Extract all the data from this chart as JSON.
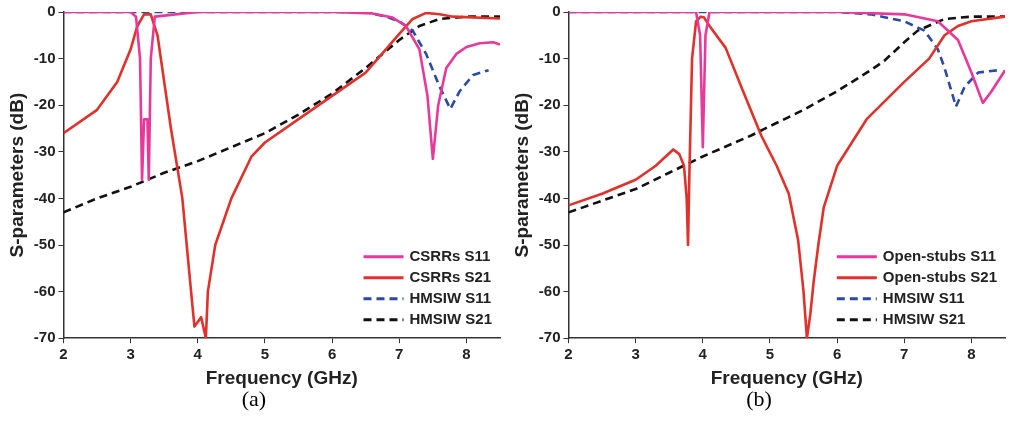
{
  "chart_data": [
    {
      "type": "line",
      "xlabel": "Frequency (GHz)",
      "ylabel": "S-parameters (dB)",
      "annotations": [
        "(a)"
      ],
      "xlim": [
        2,
        8.5
      ],
      "ylim": [
        -70,
        0
      ],
      "xticks": [
        2,
        3,
        4,
        5,
        6,
        7,
        8
      ],
      "yticks": [
        -70,
        -60,
        -50,
        -40,
        -30,
        -20,
        -10,
        0
      ],
      "grid": false,
      "legend": "bottom right",
      "marker": "none",
      "series": [
        {
          "name": "CSRRs S11",
          "color": "#e8399b",
          "line_style": "solid",
          "x": [
            2,
            3,
            3.08,
            3.14,
            3.17,
            3.2,
            3.22,
            3.25,
            3.27,
            3.3,
            3.36,
            4,
            5,
            6,
            6.6,
            6.9,
            7.1,
            7.3,
            7.42,
            7.5,
            7.58,
            7.7,
            7.85,
            8,
            8.2,
            8.4,
            8.5
          ],
          "values": [
            0,
            0,
            -1,
            -10,
            -36,
            -23,
            -23,
            -23,
            -36,
            -10,
            -1,
            0,
            0,
            0,
            -0.3,
            -1.2,
            -3,
            -8,
            -18,
            -31.5,
            -20,
            -12,
            -9,
            -7.5,
            -6.7,
            -6.5,
            -7
          ]
        },
        {
          "name": "CSRRs S21",
          "color": "#e0312a",
          "line_style": "solid",
          "x": [
            2,
            2.5,
            2.8,
            3,
            3.1,
            3.2,
            3.3,
            3.4,
            3.6,
            3.77,
            3.9,
            3.95,
            4.05,
            4.12,
            4.15,
            4.26,
            4.5,
            4.8,
            5,
            5.5,
            6,
            6.5,
            7,
            7.2,
            7.4,
            7.6,
            7.8,
            8.5
          ],
          "values": [
            -26,
            -21,
            -15,
            -8,
            -3,
            -0.5,
            -0.5,
            -5,
            -25,
            -40,
            -60,
            -67.5,
            -65.5,
            -70,
            -60,
            -50,
            -40,
            -31,
            -28,
            -23,
            -18,
            -13,
            -4.7,
            -1.5,
            -0.2,
            -0.5,
            -1,
            -1.4
          ]
        },
        {
          "name": "HMSIW S11",
          "color": "#2b4aa8",
          "line_style": "dashed",
          "x": [
            2,
            6.5,
            6.8,
            7,
            7.2,
            7.4,
            7.6,
            7.76,
            7.9,
            8.1,
            8.33
          ],
          "values": [
            0,
            0,
            -1,
            -2,
            -4,
            -9,
            -16,
            -20.8,
            -17,
            -13.5,
            -12.5
          ]
        },
        {
          "name": "HMSIW S21",
          "color": "#111111",
          "line_style": "dashed",
          "x": [
            2,
            2.5,
            3,
            3.25,
            3.5,
            4,
            4.5,
            5,
            5.5,
            6,
            6.5,
            7,
            7.3,
            7.6,
            8,
            8.5
          ],
          "values": [
            -43,
            -40,
            -37.5,
            -36,
            -34.5,
            -32,
            -29,
            -26,
            -22,
            -17.5,
            -12,
            -6,
            -3,
            -1.5,
            -1,
            -1
          ]
        }
      ]
    },
    {
      "type": "line",
      "xlabel": "Frequency (GHz)",
      "ylabel": "S-parameters (dB)",
      "annotations": [
        "(b)"
      ],
      "xlim": [
        2,
        8.5
      ],
      "ylim": [
        -70,
        0
      ],
      "xticks": [
        2,
        3,
        4,
        5,
        6,
        7,
        8
      ],
      "yticks": [
        -70,
        -60,
        -50,
        -40,
        -30,
        -20,
        -10,
        0
      ],
      "grid": false,
      "legend": "bottom right",
      "marker": "none",
      "series": [
        {
          "name": "Open-stubs S11",
          "color": "#e8399b",
          "line_style": "solid",
          "x": [
            2,
            3.9,
            3.96,
            4,
            4.04,
            4.1,
            5,
            6,
            7,
            7.5,
            7.8,
            8,
            8.17,
            8.3,
            8.5
          ],
          "values": [
            0,
            0,
            -5,
            -29,
            -5,
            0,
            0,
            0,
            -0.5,
            -2,
            -6,
            -13,
            -19.5,
            -17,
            -12.5
          ]
        },
        {
          "name": "Open-stubs S21",
          "color": "#e0312a",
          "line_style": "solid",
          "x": [
            2,
            2.5,
            3,
            3.3,
            3.56,
            3.65,
            3.72,
            3.76,
            3.78,
            3.8,
            3.84,
            3.9,
            3.97,
            4.02,
            4.1,
            4.34,
            4.6,
            4.87,
            5.1,
            5.28,
            5.42,
            5.5,
            5.55,
            5.6,
            5.65,
            5.72,
            5.8,
            6,
            6.44,
            7,
            7.37,
            7.6,
            7.8,
            8,
            8.5
          ],
          "values": [
            -41.5,
            -39,
            -36,
            -33,
            -29.5,
            -30.5,
            -33,
            -40,
            -50,
            -35,
            -10,
            -2,
            -1,
            -1.2,
            -3,
            -7.7,
            -17,
            -26.5,
            -33,
            -39,
            -49,
            -60,
            -70,
            -65,
            -58,
            -50,
            -42,
            -33,
            -23,
            -15,
            -10,
            -5,
            -3,
            -2,
            -1
          ]
        },
        {
          "name": "HMSIW S11",
          "color": "#2b4aa8",
          "line_style": "dashed",
          "x": [
            2,
            6,
            6.5,
            7,
            7.3,
            7.5,
            7.6,
            7.77,
            7.9,
            8.1,
            8.4
          ],
          "values": [
            0,
            0,
            -0.5,
            -2,
            -4,
            -8,
            -12,
            -20.3,
            -16,
            -13,
            -12.5
          ]
        },
        {
          "name": "HMSIW S21",
          "color": "#111111",
          "line_style": "dashed",
          "x": [
            2,
            3,
            3.5,
            4,
            4.72,
            5,
            5.5,
            6,
            6.5,
            6.7,
            7,
            7.2,
            7.6,
            8,
            8.5
          ],
          "values": [
            -43,
            -38,
            -34.5,
            -31,
            -26.5,
            -24.5,
            -21,
            -17,
            -12.5,
            -10.5,
            -6.5,
            -4,
            -1.5,
            -1,
            -1
          ]
        }
      ]
    }
  ]
}
